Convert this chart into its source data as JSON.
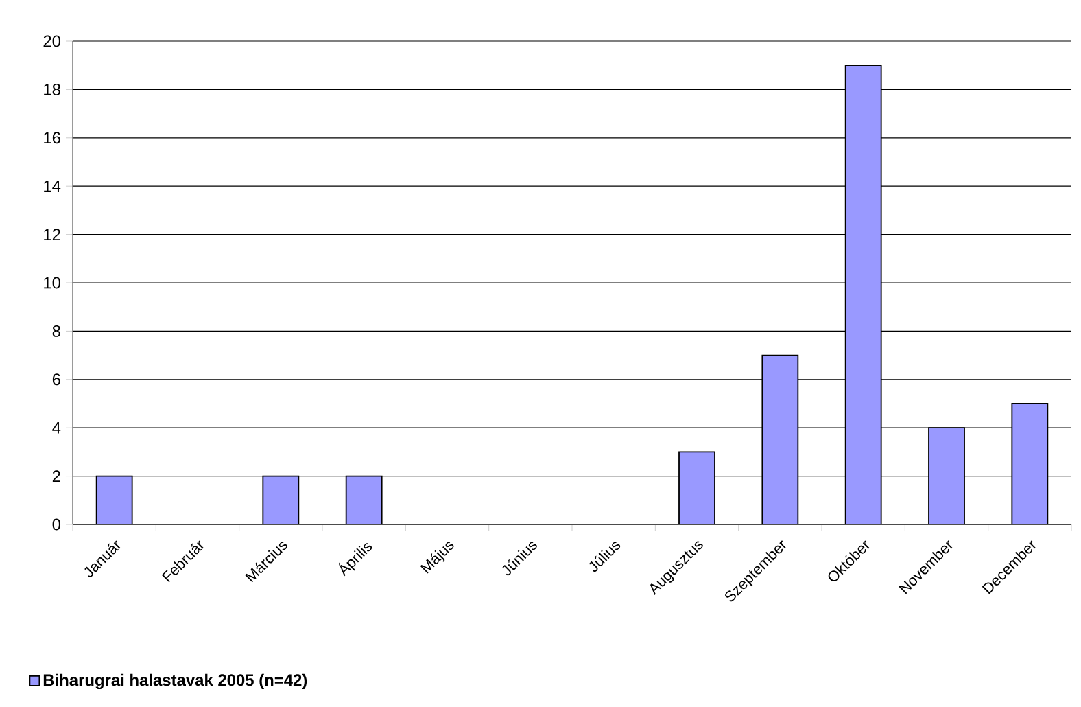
{
  "chart_data": {
    "type": "bar",
    "categories": [
      "Január",
      "Február",
      "Március",
      "Április",
      "Május",
      "Június",
      "Július",
      "Augusztus",
      "Szeptember",
      "Október",
      "November",
      "December"
    ],
    "series": [
      {
        "name": "Biharugrai halastavak 2005 (n=42)",
        "color": "#9999ff",
        "values": [
          2,
          0,
          2,
          2,
          0,
          0,
          0,
          3,
          7,
          19,
          4,
          5
        ]
      }
    ],
    "ylim": [
      0,
      20
    ],
    "yticks": [
      0,
      2,
      4,
      6,
      8,
      10,
      12,
      14,
      16,
      18,
      20
    ],
    "grid": "y",
    "legend": "bottom left"
  }
}
